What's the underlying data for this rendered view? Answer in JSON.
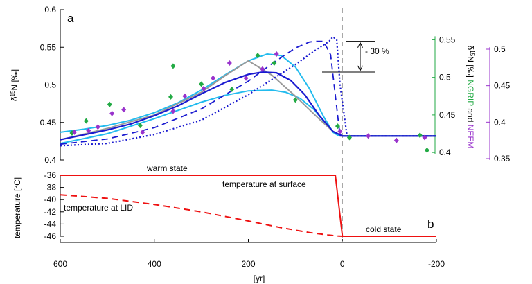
{
  "figure": {
    "panel_a_label": "a",
    "panel_b_label": "b",
    "x_label": "[yr]",
    "annotation_30": "- 30 %"
  },
  "chart_data": [
    {
      "type": "line",
      "panel": "a",
      "xlim": [
        600,
        -200
      ],
      "x_ticks": [
        600,
        400,
        200,
        0,
        -200
      ],
      "left_axis": {
        "label_prefix": "δ",
        "label_sup": "15",
        "label_rest": "N [‰]",
        "ylim": [
          0.4,
          0.6
        ],
        "ticks": [
          "0.4",
          "0.45",
          "0.5",
          "0.55",
          "0.6"
        ],
        "tick_values": [
          0.4,
          0.45,
          0.5,
          0.55,
          0.6
        ]
      },
      "green_axis": {
        "label_prefix": "δ",
        "label_sup": "15",
        "label_rest": "N [‰]",
        "label_ngrip": "NGRIP",
        "label_and": " and ",
        "label_neem": "NEEM",
        "ticks": [
          "0.4",
          "0.45",
          "0.5",
          "0.55"
        ],
        "tick_values": [
          0.4,
          0.45,
          0.5,
          0.55
        ],
        "color": "#22aa44"
      },
      "purple_axis": {
        "ticks": [
          "0.35",
          "0.4",
          "0.45",
          "0.5"
        ],
        "tick_values": [
          0.35,
          0.4,
          0.45,
          0.5
        ],
        "color": "#9933cc"
      },
      "vertical_line_x": 0,
      "series": [
        {
          "style": "solid",
          "color": "#22bbee",
          "width": 2,
          "x": [
            600,
            550,
            500,
            450,
            400,
            350,
            300,
            250,
            200,
            160,
            130,
            100,
            70,
            40,
            20,
            10,
            0,
            -10,
            -200
          ],
          "y": [
            0.437,
            0.441,
            0.446,
            0.453,
            0.463,
            0.476,
            0.493,
            0.513,
            0.532,
            0.541,
            0.539,
            0.524,
            0.495,
            0.458,
            0.437,
            0.433,
            0.432,
            0.432,
            0.432
          ]
        },
        {
          "style": "solid",
          "color": "#22bbee",
          "width": 2,
          "x": [
            600,
            500,
            400,
            350,
            300,
            250,
            200,
            150,
            120,
            90,
            60,
            40,
            20,
            0,
            -200
          ],
          "y": [
            0.422,
            0.435,
            0.455,
            0.466,
            0.477,
            0.486,
            0.492,
            0.493,
            0.49,
            0.482,
            0.467,
            0.452,
            0.438,
            0.432,
            0.432
          ]
        },
        {
          "style": "solid",
          "color": "#999999",
          "width": 2,
          "x": [
            600,
            500,
            400,
            300,
            250,
            200,
            150,
            100,
            50,
            20,
            0,
            -200
          ],
          "y": [
            0.427,
            0.442,
            0.46,
            0.49,
            0.512,
            0.532,
            0.513,
            0.485,
            0.455,
            0.438,
            0.432,
            0.432
          ]
        },
        {
          "style": "solid",
          "color": "#1a1ad0",
          "width": 2.2,
          "x": [
            600,
            500,
            450,
            400,
            350,
            300,
            250,
            200,
            170,
            140,
            110,
            80,
            50,
            20,
            0,
            -200
          ],
          "y": [
            0.427,
            0.44,
            0.448,
            0.459,
            0.472,
            0.488,
            0.503,
            0.514,
            0.517,
            0.516,
            0.506,
            0.487,
            0.46,
            0.438,
            0.432,
            0.432
          ]
        },
        {
          "style": "dashed",
          "color": "#1a1ad0",
          "width": 1.8,
          "x": [
            600,
            500,
            400,
            300,
            200,
            150,
            100,
            70,
            55,
            40,
            25,
            12,
            5,
            -200
          ],
          "y": [
            0.421,
            0.428,
            0.443,
            0.468,
            0.505,
            0.528,
            0.549,
            0.557,
            0.558,
            0.558,
            0.54,
            0.47,
            0.432,
            0.432
          ]
        },
        {
          "style": "dotted",
          "color": "#1a1ad0",
          "width": 2.2,
          "x": [
            600,
            500,
            400,
            300,
            200,
            150,
            100,
            60,
            40,
            28,
            20,
            12,
            5,
            -10,
            -200
          ],
          "y": [
            0.419,
            0.422,
            0.434,
            0.453,
            0.487,
            0.507,
            0.527,
            0.545,
            0.553,
            0.558,
            0.564,
            0.56,
            0.5,
            0.432,
            0.432
          ]
        }
      ],
      "ngrip_points": {
        "color": "#22aa44",
        "x": [
          575,
          545,
          495,
          430,
          365,
          360,
          300,
          235,
          180,
          145,
          100,
          10,
          -15,
          -165,
          -180
        ],
        "y": [
          0.426,
          0.442,
          0.464,
          0.436,
          0.474,
          0.515,
          0.491,
          0.484,
          0.529,
          0.519,
          0.47,
          0.435,
          0.42,
          0.423,
          0.403
        ]
      },
      "neem_points": {
        "color": "#9933cc",
        "x": [
          570,
          540,
          520,
          490,
          465,
          425,
          360,
          335,
          295,
          275,
          240,
          205,
          170,
          140,
          5,
          -55,
          -115,
          -175
        ],
        "y": [
          0.437,
          0.439,
          0.444,
          0.462,
          0.467,
          0.437,
          0.465,
          0.485,
          0.495,
          0.509,
          0.529,
          0.509,
          0.521,
          0.541,
          0.438,
          0.432,
          0.426,
          0.43
        ]
      }
    },
    {
      "type": "line",
      "panel": "b",
      "xlim": [
        600,
        -200
      ],
      "ylim": [
        -46,
        -36
      ],
      "ylabel": "temperature [°C]",
      "y_ticks": [
        "-36",
        "-38",
        "-40",
        "-42",
        "-44",
        "-46"
      ],
      "y_tick_values": [
        -36,
        -38,
        -40,
        -42,
        -44,
        -46
      ],
      "series": [
        {
          "name": "temperature at surface",
          "style": "solid",
          "color": "#ee1111",
          "x": [
            600,
            15,
            0,
            -200
          ],
          "y": [
            -36,
            -36,
            -46,
            -46
          ]
        },
        {
          "name": "temperature at LID",
          "style": "dashed",
          "color": "#ee1111",
          "x": [
            600,
            500,
            400,
            300,
            200,
            130,
            70,
            30,
            10,
            0
          ],
          "y": [
            -39.2,
            -39.8,
            -40.8,
            -42.0,
            -43.5,
            -44.6,
            -45.4,
            -45.8,
            -45.95,
            -46
          ]
        }
      ],
      "annotations": {
        "warm_state": "warm state",
        "temperature_at_surface": "temperature at surface",
        "temperature_at_lid": "temperature at LID",
        "cold_state": "cold state"
      }
    }
  ]
}
